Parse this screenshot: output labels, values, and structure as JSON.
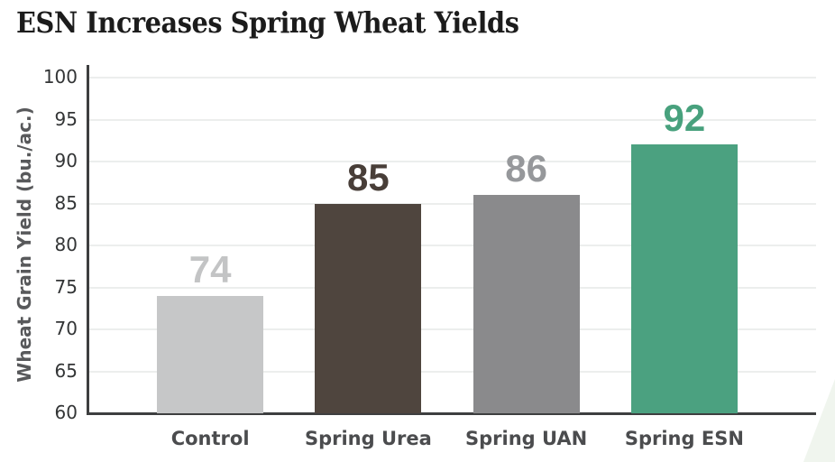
{
  "chart_data": {
    "type": "bar",
    "title": "ESN Increases Spring Wheat Yields",
    "ylabel": "Wheat Grain Yield (bu./ac.)",
    "xlabel": "",
    "categories": [
      "Control",
      "Spring Urea",
      "Spring UAN",
      "Spring ESN"
    ],
    "values": [
      74,
      85,
      86,
      92
    ],
    "bar_colors": [
      "#c6c7c8",
      "#4f453e",
      "#8a8a8c",
      "#4ba180"
    ],
    "value_label_colors": [
      "#c3c4c5",
      "#483e38",
      "#96989b",
      "#48a17d"
    ],
    "ylim": [
      60,
      100
    ],
    "yticks": [
      60,
      65,
      70,
      75,
      80,
      85,
      90,
      95,
      100
    ],
    "grid": true,
    "legend": false,
    "colors": {
      "axis": "#3e3f40",
      "gridline": "#eceeed",
      "tick_label": "#333536",
      "category_label": "#4b4c4e",
      "title": "#1c1c1c",
      "y_axis_title": "#58595b",
      "corner_accent": "#f0f5ee"
    }
  }
}
